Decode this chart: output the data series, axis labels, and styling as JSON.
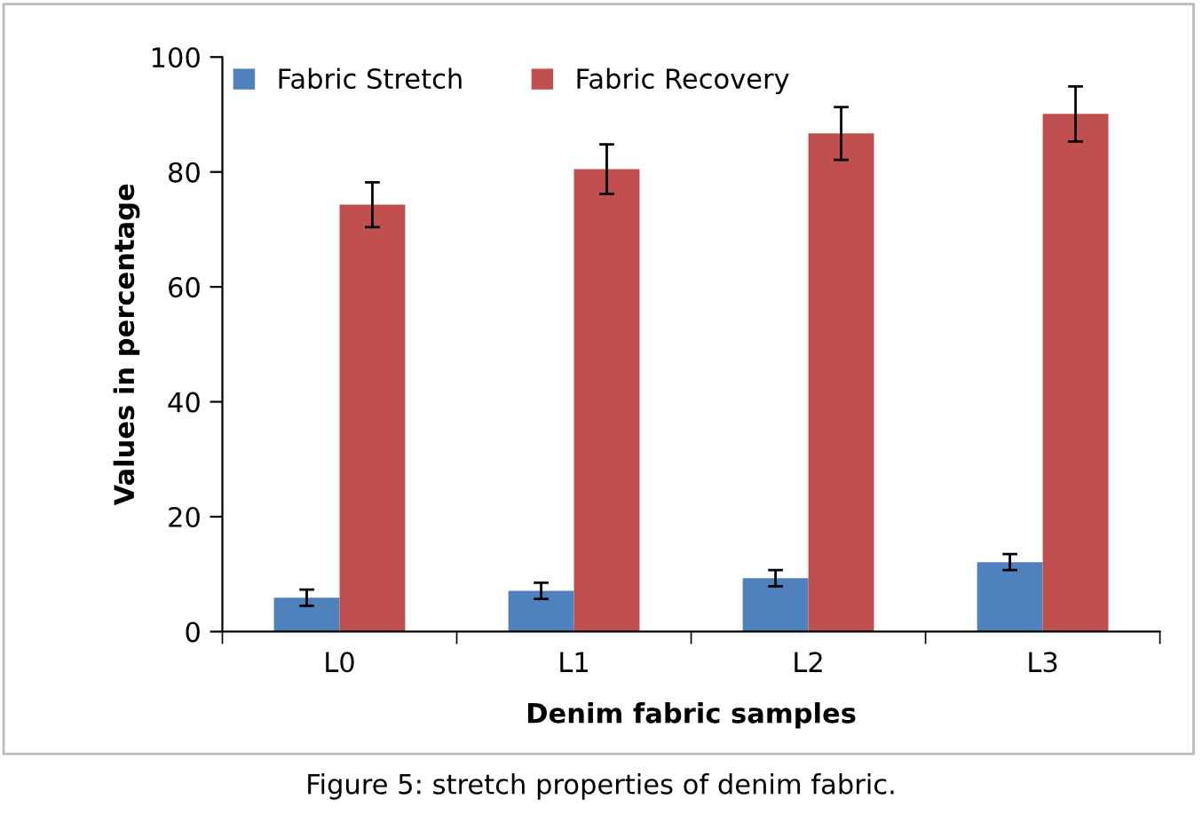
{
  "chart_data": {
    "type": "bar",
    "xlabel": "Denim fabric samples",
    "ylabel": "Values in percentage",
    "categories": [
      "L0",
      "L1",
      "L2",
      "L3"
    ],
    "series": [
      {
        "name": "Fabric Stretch",
        "color": "#4f81bd",
        "values": [
          5.9,
          7.1,
          9.3,
          12.1
        ],
        "errors": [
          1.4,
          1.4,
          1.4,
          1.4
        ]
      },
      {
        "name": "Fabric Recovery",
        "color": "#c0504d",
        "values": [
          74.3,
          80.5,
          86.7,
          90.1
        ],
        "errors": [
          3.9,
          4.3,
          4.6,
          4.8
        ]
      }
    ],
    "ylim": [
      0,
      100
    ],
    "yticks": [
      0,
      20,
      40,
      60,
      80,
      100
    ],
    "grid": false,
    "legend": "top left",
    "annotations": [
      "Figure 5: stretch properties of denim fabric."
    ]
  }
}
